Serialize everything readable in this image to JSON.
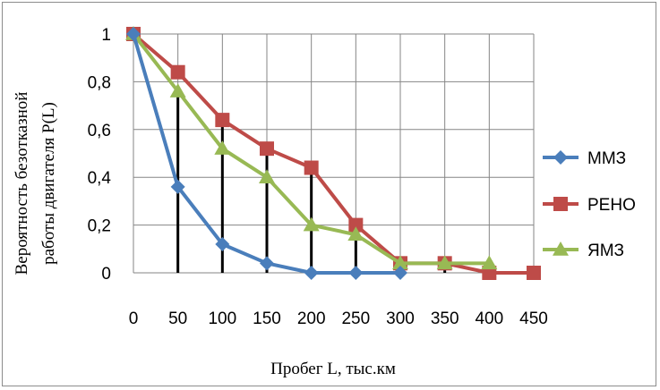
{
  "chart_data": {
    "type": "line",
    "title": "",
    "xlabel": "Пробег  L, тыс.км",
    "ylabel_lines": [
      "Вероятность  безотказной",
      "работы  двигателя  P(L)"
    ],
    "x": [
      0,
      50,
      100,
      150,
      200,
      250,
      300,
      350,
      400,
      450
    ],
    "x_tick_labels": [
      "0",
      "50",
      "100",
      "150",
      "200",
      "250",
      "300",
      "350",
      "400",
      "450"
    ],
    "y_tick_labels": [
      "0",
      "0,2",
      "0,4",
      "0,6",
      "0,8",
      "1"
    ],
    "ylim": [
      0,
      1
    ],
    "grid": true,
    "legend_position": "right",
    "series": [
      {
        "name": "ММЗ",
        "color": "#4a7ebb",
        "marker": "diamond",
        "values": [
          1,
          0.36,
          0.12,
          0.04,
          0,
          0,
          0,
          null,
          null,
          null
        ]
      },
      {
        "name": "РЕНО",
        "color": "#be4b48",
        "marker": "square",
        "values": [
          1,
          0.84,
          0.64,
          0.52,
          0.44,
          0.2,
          0.04,
          0.04,
          0,
          0
        ]
      },
      {
        "name": "ЯМЗ",
        "color": "#98b954",
        "marker": "triangle",
        "values": [
          1,
          0.76,
          0.52,
          0.4,
          0.2,
          0.16,
          0.04,
          0.04,
          0.04,
          null
        ]
      }
    ],
    "vertical_lines": {
      "color": "#000000",
      "x": [
        50,
        100,
        150,
        200,
        250,
        350,
        400
      ],
      "top_values": [
        0.76,
        0.64,
        0.52,
        0.44,
        0.2,
        0.04,
        0.04
      ]
    }
  }
}
